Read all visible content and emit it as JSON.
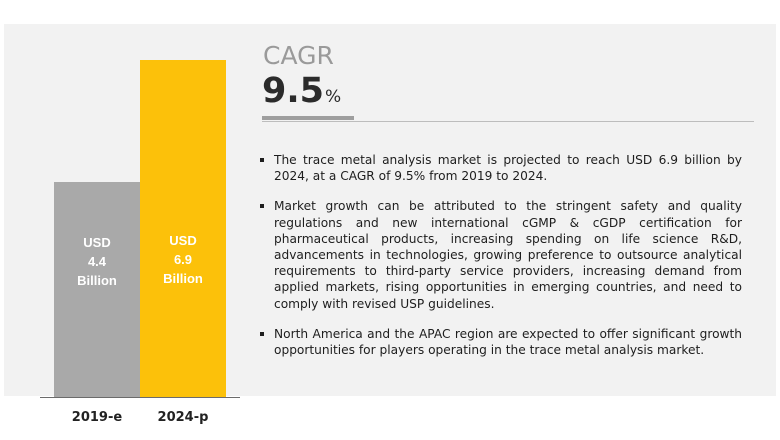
{
  "colors": {
    "bar_2019": "#a9a9a9",
    "bar_2024": "#fcc10a",
    "panel": "#f2f2f2"
  },
  "chart_data": {
    "type": "bar",
    "categories": [
      "2019-e",
      "2024-p"
    ],
    "values": [
      4.4,
      6.9
    ],
    "bar_labels": [
      [
        "USD",
        "4.4",
        "Billion"
      ],
      [
        "USD",
        "6.9",
        "Billion"
      ]
    ],
    "title": "",
    "xlabel": "",
    "ylabel": "",
    "ylim": [
      0,
      6.9
    ],
    "grid": false,
    "legend": "none"
  },
  "cagr": {
    "label": "CAGR",
    "value": "9.5",
    "unit": "%"
  },
  "bullets": [
    "The trace metal analysis market is projected to reach USD 6.9 billion by 2024, at a CAGR of 9.5% from 2019 to 2024.",
    "Market growth can be attributed to the stringent safety and quality regulations and new international cGMP & cGDP certification for pharmaceutical products, increasing spending on life science R&D, advancements in technologies, growing preference to outsource analytical requirements to third-party service providers, increasing demand from applied markets, rising opportunities in emerging countries, and need to comply with revised USP guidelines.",
    "North America and the APAC region are expected to offer significant growth opportunities for players operating in the trace metal analysis market."
  ]
}
